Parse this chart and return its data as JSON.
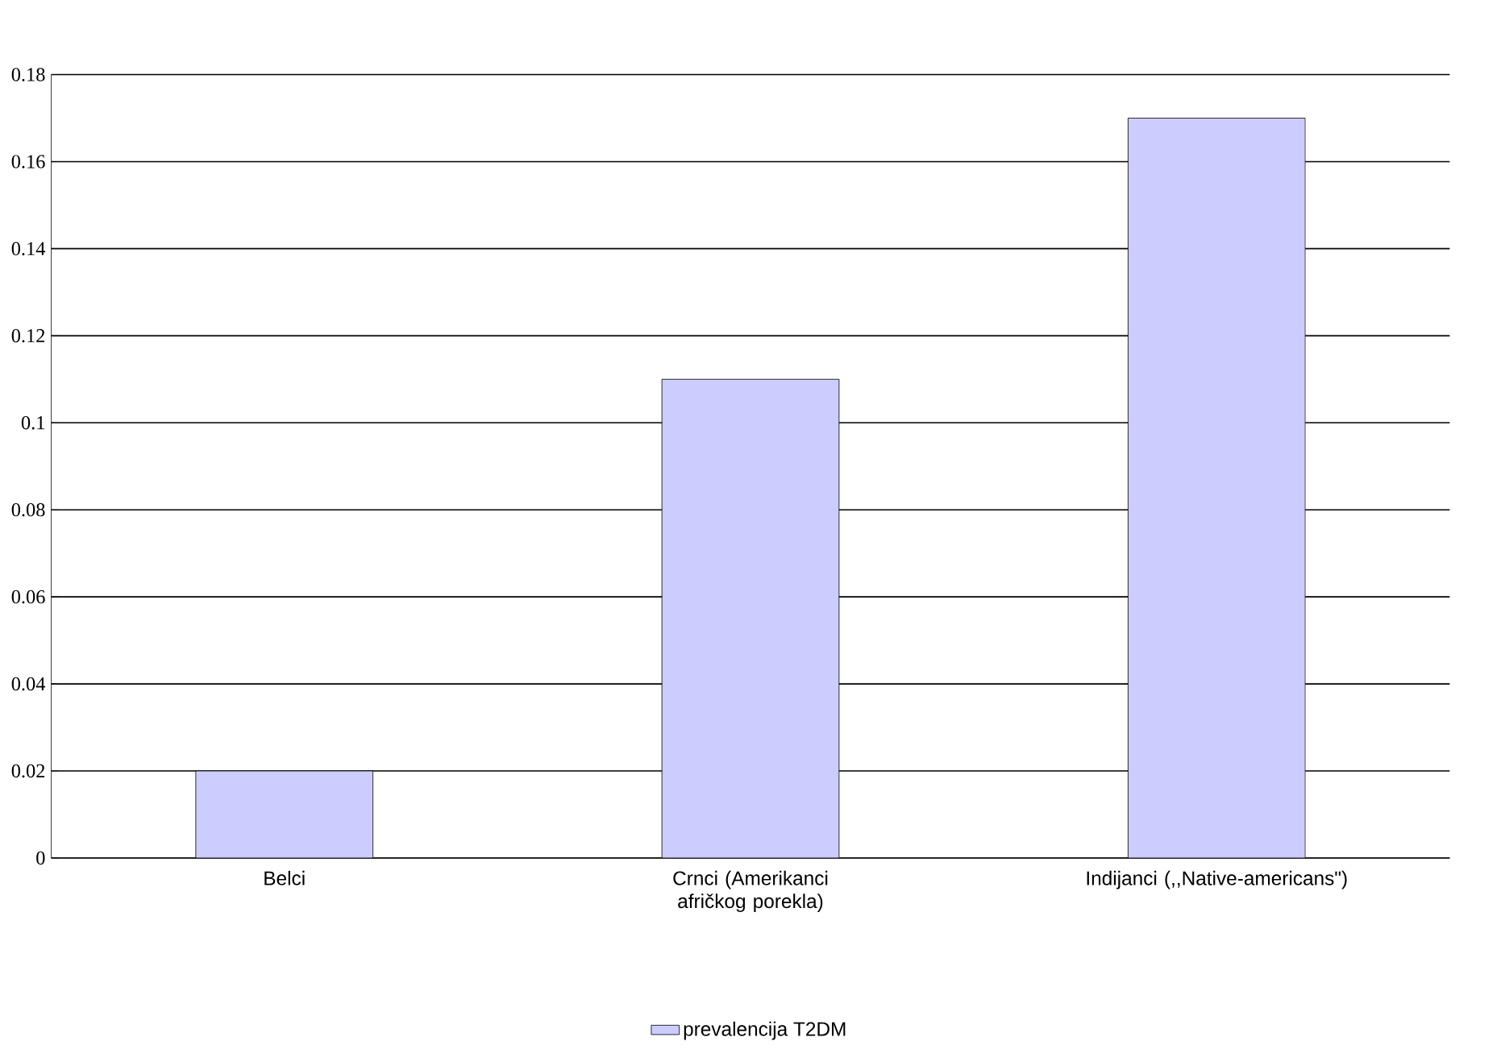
{
  "chart_data": {
    "type": "bar",
    "categories": [
      "Belci",
      "Crnci (Amerikanci afričkog porekla)",
      "Indijanci (,,Native-americans\")"
    ],
    "series": [
      {
        "name": "prevalencija T2DM",
        "color": "#ccccff",
        "values": [
          0.02,
          0.11,
          0.17
        ]
      }
    ],
    "ylim": [
      0,
      0.18
    ],
    "yticks": [
      0,
      0.02,
      0.04,
      0.06,
      0.08,
      0.1,
      0.12,
      0.14,
      0.16,
      0.18
    ],
    "grid": "y",
    "legend": "bottom"
  }
}
